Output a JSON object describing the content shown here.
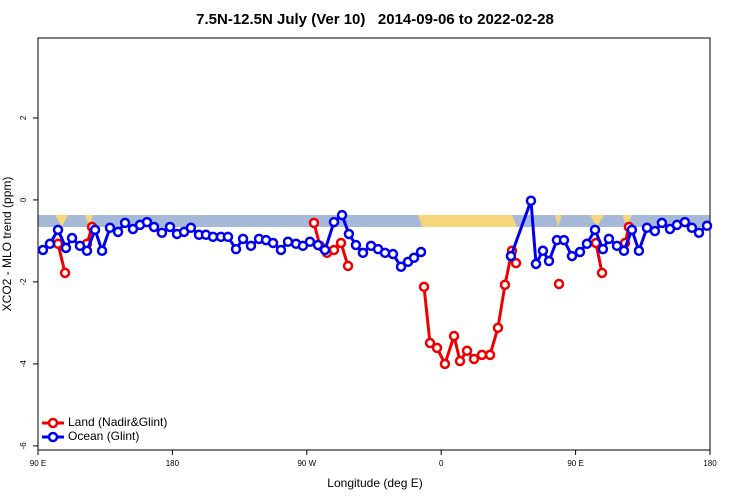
{
  "chart_data": {
    "type": "line",
    "title": "7.5N-12.5N July (Ver 10)   2014-09-06 to 2022-02-28",
    "x_label": "Longitude (deg E)",
    "y_label": "XCO2 - MLO trend (ppm)",
    "xlim": [
      90,
      540
    ],
    "xticks": [
      {
        "value": 90,
        "label": "90 E"
      },
      180,
      {
        "value": 270,
        "label": "90 W"
      },
      {
        "value": 360,
        "label": "0"
      },
      {
        "value": 450,
        "label": "90 E"
      },
      {
        "value": 540,
        "label": "180"
      }
    ],
    "ylim": [
      -6.1,
      3.95
    ],
    "yticks": [
      -6,
      -4,
      -2,
      0,
      2
    ],
    "legend": "bottomleft",
    "series": [
      {
        "name": "Land (Nadir&Glint)",
        "color": "#ee0000",
        "x": [
          103.4,
          108.1,
          115,
          122.8,
          126.2,
          200,
          274.8,
          278.8,
          283.5,
          288.2,
          292.9,
          297.6,
          320,
          348.5,
          352.5,
          357.2,
          362.5,
          368.6,
          372.6,
          377.3,
          382.0,
          387.3,
          392.7,
          398.0,
          402.7,
          407.4,
          410.1,
          420,
          438.9,
          450,
          463.6,
          467.7,
          475,
          483.1,
          485.7
        ],
        "values": [
          -1.07,
          -1.78,
          null,
          -1.07,
          -0.66,
          null,
          -0.56,
          -1.12,
          -1.29,
          -1.22,
          -1.05,
          -1.61,
          null,
          -2.12,
          -3.49,
          -3.61,
          -4.0,
          -3.32,
          -3.93,
          -3.68,
          -3.88,
          -3.78,
          -3.78,
          -3.12,
          -2.07,
          -1.24,
          -1.54,
          null,
          -2.05,
          null,
          -1.05,
          -1.78,
          null,
          -1.05,
          -0.66
        ]
      },
      {
        "name": "Ocean (Glint)",
        "color": "#0000ee",
        "x": [
          93.3,
          98.0,
          103.4,
          108.7,
          112.8,
          118.1,
          122.8,
          128.2,
          132.9,
          138.2,
          143.6,
          148.3,
          153.6,
          158.3,
          163.0,
          167.7,
          173.0,
          178.4,
          183.1,
          187.8,
          192.4,
          197.8,
          202.5,
          207.2,
          212.5,
          217.2,
          222.6,
          227.3,
          232.6,
          238.0,
          242.7,
          247.4,
          252.7,
          257.4,
          262.8,
          267.4,
          272.1,
          277.5,
          282.2,
          288.2,
          293.6,
          298.2,
          302.9,
          307.6,
          313.0,
          317.7,
          322.4,
          327.7,
          333.1,
          337.8,
          341.8,
          346.5,
          376,
          406.7,
          420.1,
          423.5,
          428.1,
          432.2,
          437.5,
          442.2,
          447.6,
          452.9,
          457.6,
          463.0,
          468.3,
          472.3,
          477.7,
          482.4,
          487.7,
          492.4,
          497.8,
          503.1,
          507.8,
          513.2,
          517.9,
          523.2,
          527.9,
          532.6,
          538.0
        ],
        "values": [
          -1.22,
          -1.07,
          -0.73,
          -1.17,
          -0.93,
          -1.12,
          -1.24,
          -0.73,
          -1.24,
          -0.68,
          -0.78,
          -0.56,
          -0.71,
          -0.61,
          -0.54,
          -0.66,
          -0.8,
          -0.66,
          -0.83,
          -0.78,
          -0.68,
          -0.85,
          -0.85,
          -0.9,
          -0.9,
          -0.9,
          -1.2,
          -0.95,
          -1.12,
          -0.95,
          -0.98,
          -1.05,
          -1.22,
          -1.02,
          -1.07,
          -1.12,
          -1.02,
          -1.1,
          -1.22,
          -0.54,
          -0.37,
          -0.83,
          -1.1,
          -1.29,
          -1.12,
          -1.2,
          -1.29,
          -1.32,
          -1.63,
          -1.51,
          -1.41,
          -1.27,
          null,
          -1.37,
          -0.02,
          -1.56,
          -1.24,
          -1.49,
          -0.98,
          -0.98,
          -1.37,
          -1.27,
          -1.07,
          -0.73,
          -1.2,
          -0.95,
          -1.12,
          -1.24,
          -0.73,
          -1.24,
          -0.68,
          -0.76,
          -0.56,
          -0.71,
          -0.61,
          -0.54,
          -0.68,
          -0.8,
          -0.63
        ]
      }
    ]
  }
}
